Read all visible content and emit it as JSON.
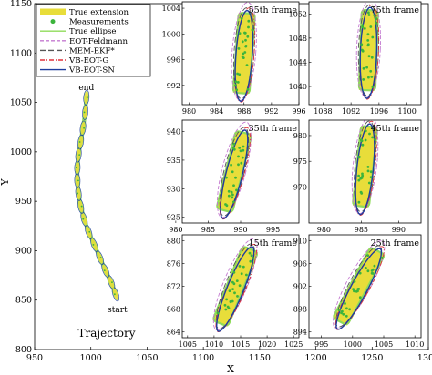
{
  "colors": {
    "true_extension": "#e8dd3a",
    "measurements": "#3cb43c",
    "true_ellipse": "#8fdb5a",
    "eot_feldmann": "#c47ad0",
    "mem_ekf": "#555555",
    "vb_eot_g": "#e0323c",
    "vb_eot_sn": "#1f3d9e",
    "axis": "#000000"
  },
  "chart_data": {
    "type": "scatter",
    "xlabel": "X",
    "ylabel": "Y",
    "xlim": [
      950,
      1300
    ],
    "ylim": [
      800,
      1150
    ],
    "xticks": [
      "950",
      "1000",
      "1050",
      "1100",
      "1150",
      "1200",
      "1250",
      "1300"
    ],
    "yticks": [
      "800",
      "850",
      "900",
      "950",
      "1000",
      "1050",
      "1100",
      "1150"
    ],
    "legend": [
      "True extension",
      "Measurements",
      "True ellipse",
      "EOT-Feldmann",
      "MEM-EKF*",
      "VB-EOT-G",
      "VB-EOT-SN"
    ],
    "legend_position": "top-left",
    "trajectory": {
      "label": "Trajectory",
      "start_label": "start",
      "end_label": "end",
      "x": [
        1022,
        1018,
        1013,
        1008,
        1003,
        998,
        994,
        991,
        989,
        988,
        988,
        989,
        991,
        993,
        995,
        996
      ],
      "y": [
        856,
        868,
        880,
        893,
        906,
        919,
        932,
        945,
        958,
        971,
        984,
        997,
        1010,
        1024,
        1040,
        1055
      ]
    },
    "insets": [
      {
        "frame": "55th frame",
        "xlim": [
          979,
          996
        ],
        "ylim": [
          989,
          1005
        ],
        "xticks": [
          "980",
          "984",
          "988",
          "992",
          "996"
        ],
        "yticks": [
          "992",
          "996",
          "1000",
          "1004"
        ],
        "center": [
          988,
          997
        ],
        "angle_deg": 4
      },
      {
        "frame": "75th frame",
        "xlim": [
          1086,
          1102
        ],
        "ylim": [
          1037,
          1054
        ],
        "xticks": [
          "1088",
          "1092",
          "1096",
          "1100"
        ],
        "yticks": [
          "1040",
          "1044",
          "1048",
          "1052"
        ],
        "center": [
          1094.5,
          1046
        ],
        "angle_deg": 2
      },
      {
        "frame": "35th frame",
        "xlim": [
          981,
          999
        ],
        "ylim": [
          924,
          942
        ],
        "xticks": [
          "980",
          "985",
          "990",
          "995"
        ],
        "yticks": [
          "925",
          "930",
          "935",
          "940"
        ],
        "center": [
          989,
          933
        ],
        "angle_deg": 14
      },
      {
        "frame": "45th frame",
        "xlim": [
          978,
          993
        ],
        "ylim": [
          963,
          983
        ],
        "xticks": [
          "980",
          "985",
          "990"
        ],
        "yticks": [
          "970",
          "975",
          "980"
        ],
        "center": [
          985.5,
          974
        ],
        "angle_deg": 6
      },
      {
        "frame": "15th frame",
        "xlim": [
          1004,
          1026
        ],
        "ylim": [
          863,
          881
        ],
        "xticks": [
          "1005",
          "1010",
          "1015",
          "1020",
          "1025"
        ],
        "yticks": [
          "864",
          "868",
          "872",
          "876",
          "880"
        ],
        "center": [
          1014,
          872
        ],
        "angle_deg": 22
      },
      {
        "frame": "25th frame",
        "xlim": [
          993,
          1011
        ],
        "ylim": [
          893,
          911
        ],
        "xticks": [
          "995",
          "1000",
          "1005",
          "1010"
        ],
        "yticks": [
          "894",
          "898",
          "902",
          "906",
          "910"
        ],
        "center": [
          1001,
          902
        ],
        "angle_deg": 28
      }
    ]
  }
}
